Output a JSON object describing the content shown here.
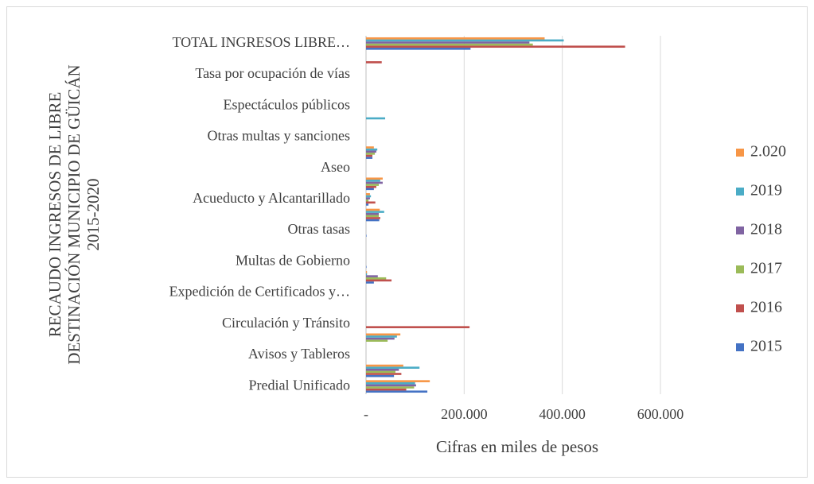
{
  "chart_data": {
    "type": "bar",
    "orientation": "horizontal",
    "y_axis_title": "RECAUDO INGRESOS DE LIBRE DESTINACIÓN MUNICIPIO DE GÜICÁN 2015-2020",
    "x_axis_title": "Cifras en miles de pesos",
    "categories": [
      "Predial Unificado",
      null,
      "Avisos y Tableros",
      null,
      "Circulación y Tránsito",
      null,
      "Expedición de Certificados y…",
      null,
      "Multas de Gobierno",
      null,
      "Otras tasas",
      null,
      "Acueducto y Alcantarillado",
      null,
      "Aseo",
      null,
      "Otras multas y sanciones",
      null,
      "Espectáculos públicos",
      null,
      "Tasa por ocupación de vías",
      null,
      "TOTAL INGRESOS LIBRE…"
    ],
    "series": [
      {
        "name": "2015",
        "color": "#4472c4",
        "values": [
          125000,
          57000,
          0,
          0,
          0,
          0,
          0,
          16000,
          1000,
          0,
          1000,
          27000,
          5000,
          16000,
          0,
          13000,
          0,
          0,
          0,
          0,
          0,
          0,
          213000
        ]
      },
      {
        "name": "2016",
        "color": "#c0504d",
        "values": [
          82000,
          72000,
          0,
          0,
          211000,
          0,
          0,
          52000,
          0,
          0,
          0,
          29000,
          19000,
          21000,
          0,
          13000,
          0,
          0,
          0,
          0,
          0,
          32000,
          528000
        ]
      },
      {
        "name": "2017",
        "color": "#9bbb59",
        "values": [
          98000,
          60000,
          0,
          44000,
          0,
          0,
          0,
          41000,
          0,
          0,
          0,
          26000,
          5000,
          26000,
          0,
          18000,
          0,
          0,
          0,
          0,
          0,
          0,
          340000
        ]
      },
      {
        "name": "2018",
        "color": "#8064a2",
        "values": [
          102000,
          67000,
          0,
          58000,
          0,
          0,
          0,
          24000,
          0,
          0,
          0,
          26000,
          8000,
          34000,
          0,
          21000,
          0,
          0,
          0,
          0,
          0,
          0,
          333000
        ]
      },
      {
        "name": "2019",
        "color": "#4bacc6",
        "values": [
          100000,
          109000,
          0,
          63000,
          0,
          0,
          0,
          2000,
          0,
          0,
          0,
          37000,
          10000,
          29000,
          0,
          23000,
          0,
          39000,
          0,
          0,
          0,
          0,
          403000
        ]
      },
      {
        "name": "2.020",
        "color": "#f79646",
        "values": [
          130000,
          76000,
          0,
          70000,
          0,
          0,
          0,
          2000,
          0,
          0,
          0,
          28000,
          8000,
          34000,
          0,
          16000,
          0,
          0,
          0,
          0,
          0,
          0,
          364000
        ]
      }
    ],
    "xlim": [
      0,
      600000
    ],
    "xticks": [
      {
        "value": 0,
        "label": "-"
      },
      {
        "value": 200000,
        "label": "200.000"
      },
      {
        "value": 400000,
        "label": "400.000"
      },
      {
        "value": 600000,
        "label": "600.000"
      }
    ],
    "grid": true,
    "legend": "right"
  }
}
